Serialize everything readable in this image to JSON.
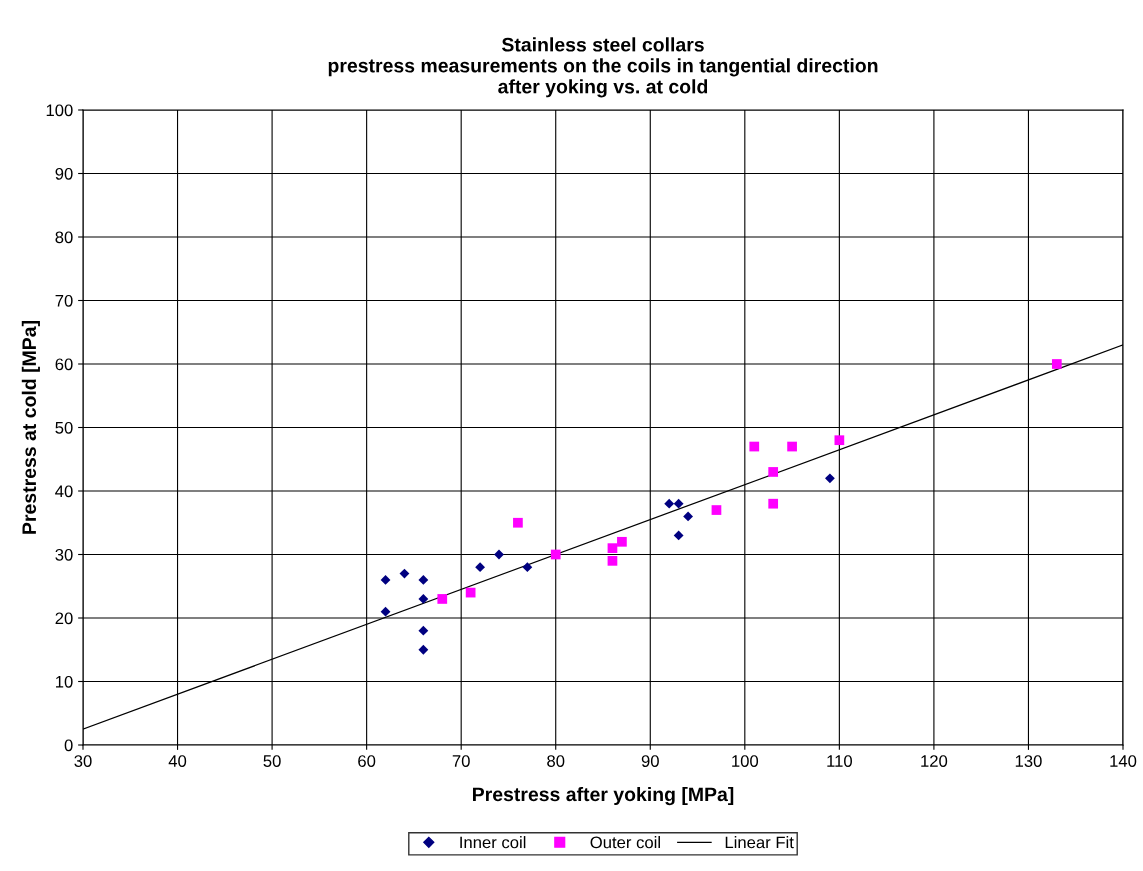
{
  "chart_data": {
    "type": "scatter",
    "title": "Stainless steel collars\nprestress measurements on the coils in tangential direction\nafter yoking vs. at cold",
    "xlabel": "Prestress after yoking [MPa]",
    "ylabel": "Prestress at cold [MPa]",
    "series": [
      {
        "name": "Inner coil",
        "marker": "diamond",
        "color": "#000080",
        "x": [
          62,
          62,
          64,
          66,
          66,
          66,
          66,
          72,
          74,
          77,
          92,
          93,
          93,
          94,
          109
        ],
        "values": [
          26,
          21,
          27,
          26,
          23,
          18,
          15,
          28,
          30,
          28,
          38,
          38,
          33,
          36,
          42
        ]
      },
      {
        "name": "Outer coil",
        "marker": "square",
        "color": "#ff00ff",
        "x": [
          68,
          71,
          76,
          80,
          86,
          86,
          87,
          97,
          101,
          103,
          103,
          105,
          110,
          133
        ],
        "values": [
          23,
          24,
          35,
          30,
          31,
          29,
          32,
          37,
          47,
          43,
          38,
          47,
          48,
          60
        ]
      },
      {
        "name": "Linear Fit",
        "type": "line",
        "marker": "none",
        "line_style": "solid",
        "color": "#000000",
        "x": [
          30,
          140
        ],
        "values": [
          2.5,
          63
        ]
      }
    ],
    "xlim": [
      30,
      140
    ],
    "xticks": [
      30,
      40,
      50,
      60,
      70,
      80,
      90,
      100,
      110,
      120,
      130,
      140
    ],
    "ylim": [
      0,
      100
    ],
    "yticks": [
      0,
      10,
      20,
      30,
      40,
      50,
      60,
      70,
      80,
      90,
      100
    ],
    "grid": true,
    "legend": "bottom"
  }
}
